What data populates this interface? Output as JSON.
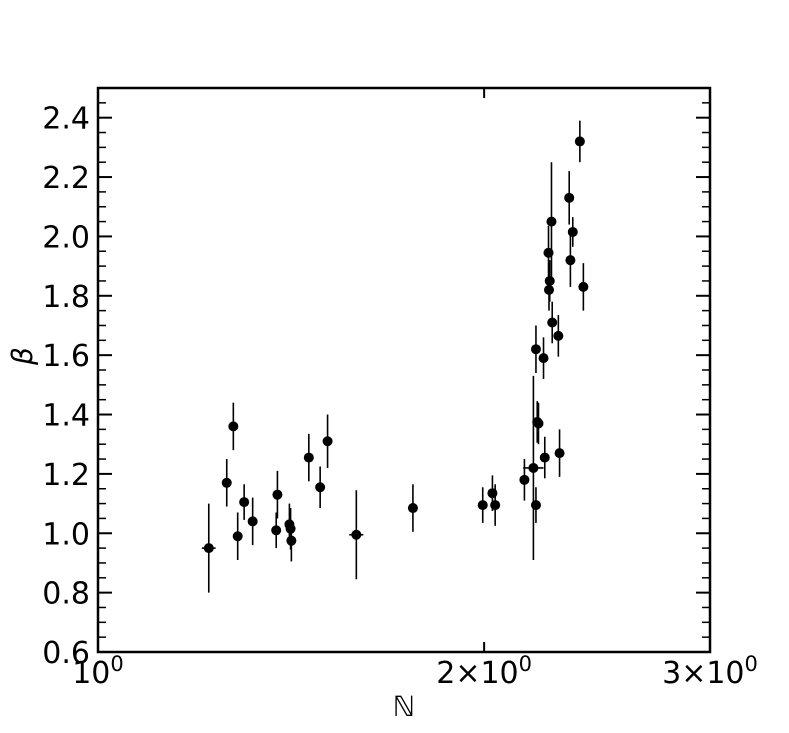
{
  "chart_data": {
    "type": "scatter",
    "xlabel": "ℕ",
    "ylabel": "β",
    "x_scale": "log",
    "xlim": [
      1.0,
      3.0
    ],
    "ylim": [
      0.6,
      2.5
    ],
    "grid": false,
    "x_major_ticks": [
      {
        "value": 1,
        "mantissa": "",
        "exponent": "0"
      },
      {
        "value": 2,
        "mantissa": "2×",
        "exponent": "0"
      },
      {
        "value": 3,
        "mantissa": "3×",
        "exponent": "0"
      }
    ],
    "y_ticks": [
      0.6,
      0.8,
      1.0,
      1.2,
      1.4,
      1.6,
      1.8,
      2.0,
      2.2,
      2.4
    ],
    "y_tick_labels": [
      "0.6",
      "0.8",
      "1.0",
      "1.2",
      "1.4",
      "1.6",
      "1.8",
      "2.0",
      "2.2",
      "2.4"
    ],
    "marker_color": "#000000",
    "points": [
      {
        "x": 1.22,
        "y": 0.95,
        "xerr": 0.015,
        "yerr": 0.15
      },
      {
        "x": 1.26,
        "y": 1.17,
        "yerr": 0.08
      },
      {
        "x": 1.275,
        "y": 1.36,
        "yerr": 0.08
      },
      {
        "x": 1.285,
        "y": 0.99,
        "yerr": 0.08
      },
      {
        "x": 1.3,
        "y": 1.105,
        "yerr": 0.06
      },
      {
        "x": 1.32,
        "y": 1.04,
        "yerr": 0.08
      },
      {
        "x": 1.38,
        "y": 1.13,
        "yerr": 0.08
      },
      {
        "x": 1.377,
        "y": 1.01,
        "yerr": 0.06
      },
      {
        "x": 1.41,
        "y": 1.03,
        "yerr": 0.07
      },
      {
        "x": 1.413,
        "y": 1.015,
        "yerr": 0.07
      },
      {
        "x": 1.415,
        "y": 0.975,
        "yerr": 0.07
      },
      {
        "x": 1.46,
        "y": 1.255,
        "yerr": 0.08
      },
      {
        "x": 1.49,
        "y": 1.155,
        "yerr": 0.07
      },
      {
        "x": 1.51,
        "y": 1.31,
        "yerr": 0.09
      },
      {
        "x": 1.59,
        "y": 0.995,
        "xerr": 0.02,
        "yerr": 0.15
      },
      {
        "x": 1.76,
        "y": 1.085,
        "yerr": 0.08
      },
      {
        "x": 1.995,
        "y": 1.095,
        "yerr": 0.06
      },
      {
        "x": 2.03,
        "y": 1.135,
        "yerr": 0.06
      },
      {
        "x": 2.04,
        "y": 1.095,
        "yerr": 0.07
      },
      {
        "x": 2.15,
        "y": 1.18,
        "yerr": 0.07
      },
      {
        "x": 2.185,
        "y": 1.22,
        "xerr": 0.04,
        "yerr": 0.31
      },
      {
        "x": 2.195,
        "y": 1.62,
        "yerr": 0.08
      },
      {
        "x": 2.195,
        "y": 1.095,
        "yerr": 0.06
      },
      {
        "x": 2.2,
        "y": 1.375,
        "yerr": 0.07
      },
      {
        "x": 2.205,
        "y": 1.37,
        "yerr": 0.07
      },
      {
        "x": 2.225,
        "y": 1.59,
        "yerr": 0.07
      },
      {
        "x": 2.23,
        "y": 1.255,
        "yerr": 0.07
      },
      {
        "x": 2.245,
        "y": 1.945,
        "yerr": 0.09
      },
      {
        "x": 2.247,
        "y": 1.82,
        "yerr": 0.07
      },
      {
        "x": 2.25,
        "y": 1.85,
        "yerr": 0.07
      },
      {
        "x": 2.257,
        "y": 2.05,
        "yerr": 0.2
      },
      {
        "x": 2.26,
        "y": 1.71,
        "yerr": 0.07
      },
      {
        "x": 2.285,
        "y": 1.665,
        "yerr": 0.07
      },
      {
        "x": 2.29,
        "y": 1.27,
        "yerr": 0.08
      },
      {
        "x": 2.33,
        "y": 2.13,
        "yerr": 0.09
      },
      {
        "x": 2.335,
        "y": 1.92,
        "yerr": 0.09
      },
      {
        "x": 2.345,
        "y": 2.015,
        "yerr": 0.05
      },
      {
        "x": 2.375,
        "y": 2.32,
        "yerr": 0.07
      },
      {
        "x": 2.39,
        "y": 1.83,
        "yerr": 0.08
      }
    ]
  }
}
